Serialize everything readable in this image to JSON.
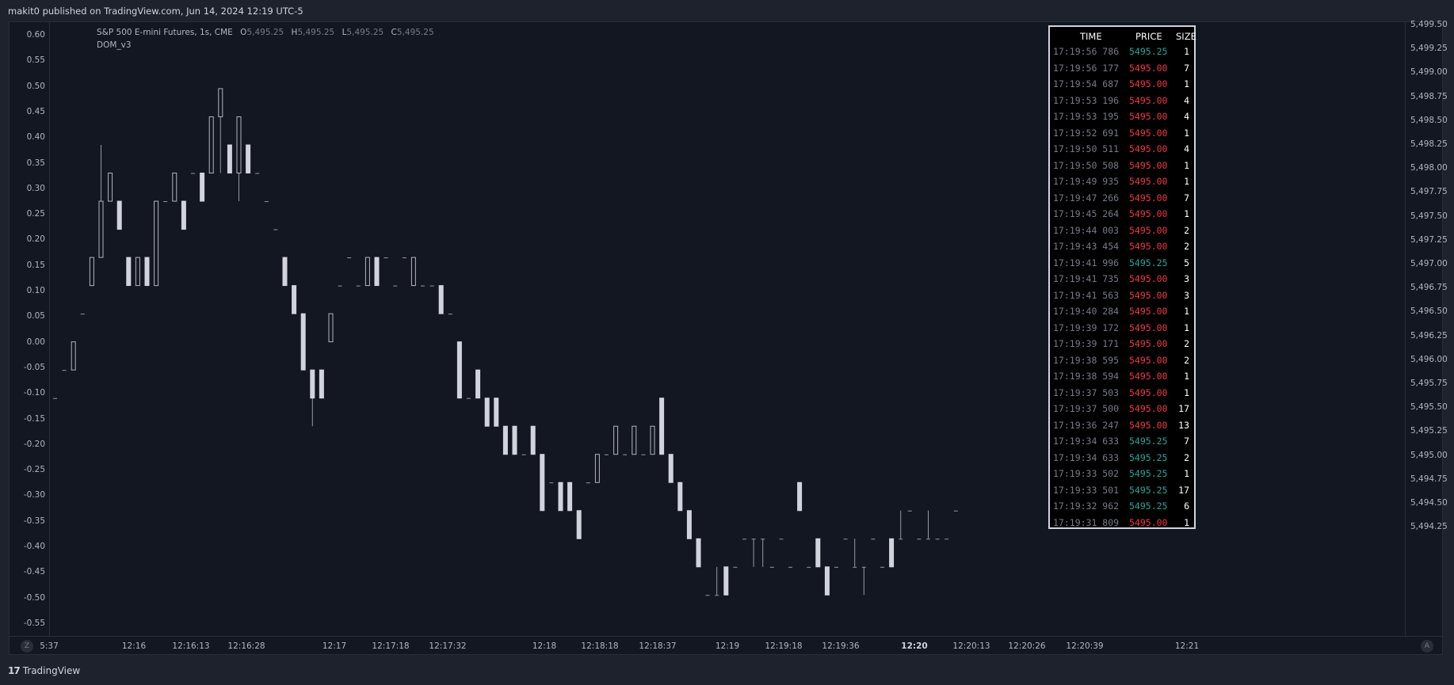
{
  "header": {
    "published_text": "makit0 published on TradingView.com, Jun 14, 2024 12:19 UTC-5"
  },
  "legend": {
    "symbol": "S&P 500 E-mini Futures, 1s, CME",
    "open_label": "O",
    "open_value": "5,495.25",
    "high_label": "H",
    "high_value": "5,495.25",
    "low_label": "L",
    "low_value": "5,495.25",
    "close_label": "C",
    "close_value": "5,495.25",
    "indicator": "DOM_v3"
  },
  "buttons": {
    "z": "Z",
    "a": "A"
  },
  "footer": {
    "brand": "TradingView",
    "mark": "17"
  },
  "colors": {
    "background": "#131722",
    "frame": "#1e222d",
    "bar": "#d1d4dc",
    "buy": "#26a69a",
    "sell": "#f23645"
  },
  "chart_data": {
    "type": "ohlc",
    "left_axis": {
      "ticks": [
        "0.60",
        "0.55",
        "0.50",
        "0.45",
        "0.40",
        "0.35",
        "0.30",
        "0.25",
        "0.20",
        "0.15",
        "0.10",
        "0.05",
        "0.00",
        "-0.05",
        "-0.10",
        "-0.15",
        "-0.20",
        "-0.25",
        "-0.30",
        "-0.35",
        "-0.40",
        "-0.45",
        "-0.50",
        "-0.55"
      ],
      "range": [
        -0.575,
        0.625
      ]
    },
    "right_axis": {
      "ticks": [
        "5,499.50",
        "5,499.25",
        "5,499.00",
        "5,498.75",
        "5,498.50",
        "5,498.25",
        "5,498.00",
        "5,497.75",
        "5,497.50",
        "5,497.25",
        "5,497.00",
        "5,496.75",
        "5,496.50",
        "5,496.25",
        "5,496.00",
        "5,495.75",
        "5,495.50",
        "5,495.25",
        "5,495.00",
        "5,494.75",
        "5,494.50",
        "5,494.25"
      ]
    },
    "time_axis": {
      "ticks": [
        "5:37",
        "12:16",
        "12:16:13",
        "12:16:28",
        "12:17",
        "12:17:18",
        "12:17:32",
        "12:18",
        "12:18:18",
        "12:18:37",
        "12:19",
        "12:19:18",
        "12:19:36",
        "12:20",
        "12:20:13",
        "12:20:26",
        "12:20:39",
        "12:21"
      ],
      "bold": [
        "12:20"
      ]
    },
    "series": [
      {
        "t": 0,
        "o": -0.11,
        "h": -0.11,
        "l": -0.11,
        "c": -0.11
      },
      {
        "t": 1,
        "o": -0.055,
        "h": -0.055,
        "l": -0.055,
        "c": -0.055
      },
      {
        "t": 2,
        "o": -0.055,
        "h": 0,
        "l": -0.055,
        "c": 0
      },
      {
        "t": 3,
        "o": 0.055,
        "h": 0.055,
        "l": 0.055,
        "c": 0.055
      },
      {
        "t": 4,
        "o": 0.11,
        "h": 0.165,
        "l": 0.11,
        "c": 0.165
      },
      {
        "t": 5,
        "o": 0.165,
        "h": 0.385,
        "l": 0.165,
        "c": 0.275
      },
      {
        "t": 6,
        "o": 0.275,
        "h": 0.33,
        "l": 0.275,
        "c": 0.33
      },
      {
        "t": 7,
        "o": 0.275,
        "h": 0.275,
        "l": 0.22,
        "c": 0.22
      },
      {
        "t": 8,
        "o": 0.165,
        "h": 0.165,
        "l": 0.11,
        "c": 0.11
      },
      {
        "t": 9,
        "o": 0.11,
        "h": 0.165,
        "l": 0.11,
        "c": 0.165
      },
      {
        "t": 10,
        "o": 0.165,
        "h": 0.165,
        "l": 0.11,
        "c": 0.11
      },
      {
        "t": 11,
        "o": 0.11,
        "h": 0.275,
        "l": 0.11,
        "c": 0.275
      },
      {
        "t": 12,
        "o": 0.275,
        "h": 0.275,
        "l": 0.275,
        "c": 0.275
      },
      {
        "t": 13,
        "o": 0.275,
        "h": 0.33,
        "l": 0.275,
        "c": 0.33
      },
      {
        "t": 14,
        "o": 0.275,
        "h": 0.275,
        "l": 0.22,
        "c": 0.22
      },
      {
        "t": 15,
        "o": 0.33,
        "h": 0.33,
        "l": 0.33,
        "c": 0.33
      },
      {
        "t": 16,
        "o": 0.33,
        "h": 0.33,
        "l": 0.275,
        "c": 0.275
      },
      {
        "t": 17,
        "o": 0.33,
        "h": 0.44,
        "l": 0.33,
        "c": 0.44
      },
      {
        "t": 18,
        "o": 0.44,
        "h": 0.495,
        "l": 0.33,
        "c": 0.495
      },
      {
        "t": 19,
        "o": 0.385,
        "h": 0.385,
        "l": 0.33,
        "c": 0.33
      },
      {
        "t": 20,
        "o": 0.33,
        "h": 0.44,
        "l": 0.275,
        "c": 0.44
      },
      {
        "t": 21,
        "o": 0.385,
        "h": 0.385,
        "l": 0.33,
        "c": 0.33
      },
      {
        "t": 22,
        "o": 0.33,
        "h": 0.33,
        "l": 0.33,
        "c": 0.33
      },
      {
        "t": 23,
        "o": 0.275,
        "h": 0.275,
        "l": 0.275,
        "c": 0.275
      },
      {
        "t": 24,
        "o": 0.22,
        "h": 0.22,
        "l": 0.22,
        "c": 0.22
      },
      {
        "t": 25,
        "o": 0.165,
        "h": 0.165,
        "l": 0.11,
        "c": 0.11
      },
      {
        "t": 26,
        "o": 0.11,
        "h": 0.11,
        "l": 0.055,
        "c": 0.055
      },
      {
        "t": 27,
        "o": 0.055,
        "h": 0.055,
        "l": -0.055,
        "c": -0.055
      },
      {
        "t": 28,
        "o": -0.055,
        "h": -0.055,
        "l": -0.165,
        "c": -0.11
      },
      {
        "t": 29,
        "o": -0.055,
        "h": -0.055,
        "l": -0.11,
        "c": -0.11
      },
      {
        "t": 30,
        "o": 0,
        "h": 0.055,
        "l": 0,
        "c": 0.055
      },
      {
        "t": 31,
        "o": 0.11,
        "h": 0.11,
        "l": 0.11,
        "c": 0.11
      },
      {
        "t": 32,
        "o": 0.165,
        "h": 0.165,
        "l": 0.165,
        "c": 0.165
      },
      {
        "t": 33,
        "o": 0.11,
        "h": 0.11,
        "l": 0.11,
        "c": 0.11
      },
      {
        "t": 34,
        "o": 0.11,
        "h": 0.165,
        "l": 0.11,
        "c": 0.165
      },
      {
        "t": 35,
        "o": 0.165,
        "h": 0.165,
        "l": 0.11,
        "c": 0.11
      },
      {
        "t": 36,
        "o": 0.165,
        "h": 0.165,
        "l": 0.165,
        "c": 0.165
      },
      {
        "t": 37,
        "o": 0.11,
        "h": 0.11,
        "l": 0.11,
        "c": 0.11
      },
      {
        "t": 38,
        "o": 0.165,
        "h": 0.165,
        "l": 0.165,
        "c": 0.165
      },
      {
        "t": 39,
        "o": 0.11,
        "h": 0.165,
        "l": 0.11,
        "c": 0.165
      },
      {
        "t": 40,
        "o": 0.11,
        "h": 0.11,
        "l": 0.11,
        "c": 0.11
      },
      {
        "t": 41,
        "o": 0.11,
        "h": 0.11,
        "l": 0.11,
        "c": 0.11
      },
      {
        "t": 42,
        "o": 0.11,
        "h": 0.11,
        "l": 0.055,
        "c": 0.055
      },
      {
        "t": 43,
        "o": 0.055,
        "h": 0.055,
        "l": 0.055,
        "c": 0.055
      },
      {
        "t": 44,
        "o": 0,
        "h": 0,
        "l": -0.11,
        "c": -0.11
      },
      {
        "t": 45,
        "o": -0.11,
        "h": -0.11,
        "l": -0.11,
        "c": -0.11
      },
      {
        "t": 46,
        "o": -0.055,
        "h": -0.055,
        "l": -0.11,
        "c": -0.11
      },
      {
        "t": 47,
        "o": -0.11,
        "h": -0.11,
        "l": -0.165,
        "c": -0.165
      },
      {
        "t": 48,
        "o": -0.11,
        "h": -0.11,
        "l": -0.165,
        "c": -0.165
      },
      {
        "t": 49,
        "o": -0.165,
        "h": -0.165,
        "l": -0.22,
        "c": -0.22
      },
      {
        "t": 50,
        "o": -0.165,
        "h": -0.165,
        "l": -0.22,
        "c": -0.22
      },
      {
        "t": 51,
        "o": -0.22,
        "h": -0.22,
        "l": -0.22,
        "c": -0.22
      },
      {
        "t": 52,
        "o": -0.165,
        "h": -0.165,
        "l": -0.22,
        "c": -0.22
      },
      {
        "t": 53,
        "o": -0.22,
        "h": -0.22,
        "l": -0.33,
        "c": -0.33
      },
      {
        "t": 54,
        "o": -0.275,
        "h": -0.275,
        "l": -0.275,
        "c": -0.275
      },
      {
        "t": 55,
        "o": -0.275,
        "h": -0.275,
        "l": -0.33,
        "c": -0.33
      },
      {
        "t": 56,
        "o": -0.275,
        "h": -0.275,
        "l": -0.33,
        "c": -0.33
      },
      {
        "t": 57,
        "o": -0.33,
        "h": -0.33,
        "l": -0.385,
        "c": -0.385
      },
      {
        "t": 58,
        "o": -0.275,
        "h": -0.275,
        "l": -0.275,
        "c": -0.275
      },
      {
        "t": 59,
        "o": -0.275,
        "h": -0.22,
        "l": -0.275,
        "c": -0.22
      },
      {
        "t": 60,
        "o": -0.22,
        "h": -0.22,
        "l": -0.22,
        "c": -0.22
      },
      {
        "t": 61,
        "o": -0.22,
        "h": -0.165,
        "l": -0.22,
        "c": -0.165
      },
      {
        "t": 62,
        "o": -0.22,
        "h": -0.22,
        "l": -0.22,
        "c": -0.22
      },
      {
        "t": 63,
        "o": -0.22,
        "h": -0.165,
        "l": -0.22,
        "c": -0.165
      },
      {
        "t": 64,
        "o": -0.22,
        "h": -0.22,
        "l": -0.22,
        "c": -0.22
      },
      {
        "t": 65,
        "o": -0.22,
        "h": -0.165,
        "l": -0.22,
        "c": -0.165
      },
      {
        "t": 66,
        "o": -0.11,
        "h": -0.11,
        "l": -0.22,
        "c": -0.22
      },
      {
        "t": 67,
        "o": -0.22,
        "h": -0.22,
        "l": -0.275,
        "c": -0.275
      },
      {
        "t": 68,
        "o": -0.275,
        "h": -0.275,
        "l": -0.33,
        "c": -0.33
      },
      {
        "t": 69,
        "o": -0.33,
        "h": -0.33,
        "l": -0.385,
        "c": -0.385
      },
      {
        "t": 70,
        "o": -0.385,
        "h": -0.385,
        "l": -0.44,
        "c": -0.44
      },
      {
        "t": 71,
        "o": -0.495,
        "h": -0.495,
        "l": -0.495,
        "c": -0.495
      },
      {
        "t": 72,
        "o": -0.495,
        "h": -0.44,
        "l": -0.495,
        "c": -0.495
      },
      {
        "t": 73,
        "o": -0.44,
        "h": -0.44,
        "l": -0.495,
        "c": -0.495
      },
      {
        "t": 74,
        "o": -0.44,
        "h": -0.44,
        "l": -0.44,
        "c": -0.44
      },
      {
        "t": 75,
        "o": -0.385,
        "h": -0.385,
        "l": -0.385,
        "c": -0.385
      },
      {
        "t": 76,
        "o": -0.385,
        "h": -0.385,
        "l": -0.44,
        "c": -0.385
      },
      {
        "t": 77,
        "o": -0.385,
        "h": -0.385,
        "l": -0.44,
        "c": -0.385
      },
      {
        "t": 78,
        "o": -0.44,
        "h": -0.44,
        "l": -0.44,
        "c": -0.44
      },
      {
        "t": 79,
        "o": -0.385,
        "h": -0.385,
        "l": -0.385,
        "c": -0.385
      },
      {
        "t": 80,
        "o": -0.44,
        "h": -0.44,
        "l": -0.44,
        "c": -0.44
      },
      {
        "t": 81,
        "o": -0.275,
        "h": -0.275,
        "l": -0.33,
        "c": -0.33
      },
      {
        "t": 82,
        "o": -0.44,
        "h": -0.44,
        "l": -0.44,
        "c": -0.44
      },
      {
        "t": 83,
        "o": -0.385,
        "h": -0.385,
        "l": -0.44,
        "c": -0.44
      },
      {
        "t": 84,
        "o": -0.44,
        "h": -0.44,
        "l": -0.495,
        "c": -0.495
      },
      {
        "t": 85,
        "o": -0.44,
        "h": -0.44,
        "l": -0.44,
        "c": -0.44
      },
      {
        "t": 86,
        "o": -0.385,
        "h": -0.385,
        "l": -0.385,
        "c": -0.385
      },
      {
        "t": 87,
        "o": -0.44,
        "h": -0.385,
        "l": -0.44,
        "c": -0.44
      },
      {
        "t": 88,
        "o": -0.44,
        "h": -0.44,
        "l": -0.495,
        "c": -0.44
      },
      {
        "t": 89,
        "o": -0.385,
        "h": -0.385,
        "l": -0.385,
        "c": -0.385
      },
      {
        "t": 90,
        "o": -0.44,
        "h": -0.44,
        "l": -0.44,
        "c": -0.44
      },
      {
        "t": 91,
        "o": -0.385,
        "h": -0.385,
        "l": -0.44,
        "c": -0.44
      },
      {
        "t": 92,
        "o": -0.385,
        "h": -0.33,
        "l": -0.385,
        "c": -0.385
      },
      {
        "t": 93,
        "o": -0.33,
        "h": -0.33,
        "l": -0.33,
        "c": -0.33
      },
      {
        "t": 94,
        "o": -0.385,
        "h": -0.385,
        "l": -0.385,
        "c": -0.385
      },
      {
        "t": 95,
        "o": -0.385,
        "h": -0.33,
        "l": -0.385,
        "c": -0.385
      },
      {
        "t": 96,
        "o": -0.385,
        "h": -0.385,
        "l": -0.385,
        "c": -0.385
      },
      {
        "t": 97,
        "o": -0.385,
        "h": -0.385,
        "l": -0.385,
        "c": -0.385
      },
      {
        "t": 98,
        "o": -0.33,
        "h": -0.33,
        "l": -0.33,
        "c": -0.33
      }
    ]
  },
  "dom": {
    "headers": {
      "time": "TIME",
      "price": "PRICE",
      "size": "SIZE"
    },
    "rows": [
      {
        "time": "17:19:56 786",
        "price": "5495.25",
        "size": "1",
        "side": "buy"
      },
      {
        "time": "17:19:56 177",
        "price": "5495.00",
        "size": "7",
        "side": "sell"
      },
      {
        "time": "17:19:54 687",
        "price": "5495.00",
        "size": "1",
        "side": "sell"
      },
      {
        "time": "17:19:53 196",
        "price": "5495.00",
        "size": "4",
        "side": "sell"
      },
      {
        "time": "17:19:53 195",
        "price": "5495.00",
        "size": "4",
        "side": "sell"
      },
      {
        "time": "17:19:52 691",
        "price": "5495.00",
        "size": "1",
        "side": "sell"
      },
      {
        "time": "17:19:50 511",
        "price": "5495.00",
        "size": "4",
        "side": "sell"
      },
      {
        "time": "17:19:50 508",
        "price": "5495.00",
        "size": "1",
        "side": "sell"
      },
      {
        "time": "17:19:49 935",
        "price": "5495.00",
        "size": "1",
        "side": "sell"
      },
      {
        "time": "17:19:47 266",
        "price": "5495.00",
        "size": "7",
        "side": "sell"
      },
      {
        "time": "17:19:45 264",
        "price": "5495.00",
        "size": "1",
        "side": "sell"
      },
      {
        "time": "17:19:44 003",
        "price": "5495.00",
        "size": "2",
        "side": "sell"
      },
      {
        "time": "17:19:43 454",
        "price": "5495.00",
        "size": "2",
        "side": "sell"
      },
      {
        "time": "17:19:41 996",
        "price": "5495.25",
        "size": "5",
        "side": "buy"
      },
      {
        "time": "17:19:41 735",
        "price": "5495.00",
        "size": "3",
        "side": "sell"
      },
      {
        "time": "17:19:41 563",
        "price": "5495.00",
        "size": "3",
        "side": "sell"
      },
      {
        "time": "17:19:40 284",
        "price": "5495.00",
        "size": "1",
        "side": "sell"
      },
      {
        "time": "17:19:39 172",
        "price": "5495.00",
        "size": "1",
        "side": "sell"
      },
      {
        "time": "17:19:39 171",
        "price": "5495.00",
        "size": "2",
        "side": "sell"
      },
      {
        "time": "17:19:38 595",
        "price": "5495.00",
        "size": "2",
        "side": "sell"
      },
      {
        "time": "17:19:38 594",
        "price": "5495.00",
        "size": "1",
        "side": "sell"
      },
      {
        "time": "17:19:37 503",
        "price": "5495.00",
        "size": "1",
        "side": "sell"
      },
      {
        "time": "17:19:37 500",
        "price": "5495.00",
        "size": "17",
        "side": "sell"
      },
      {
        "time": "17:19:36 247",
        "price": "5495.00",
        "size": "13",
        "side": "sell"
      },
      {
        "time": "17:19:34 633",
        "price": "5495.25",
        "size": "7",
        "side": "buy"
      },
      {
        "time": "17:19:34 633",
        "price": "5495.25",
        "size": "2",
        "side": "buy"
      },
      {
        "time": "17:19:33 502",
        "price": "5495.25",
        "size": "1",
        "side": "buy"
      },
      {
        "time": "17:19:33 501",
        "price": "5495.25",
        "size": "17",
        "side": "buy"
      },
      {
        "time": "17:19:32 962",
        "price": "5495.25",
        "size": "6",
        "side": "buy"
      },
      {
        "time": "17:19:31 809",
        "price": "5495.00",
        "size": "1",
        "side": "sell"
      }
    ]
  }
}
